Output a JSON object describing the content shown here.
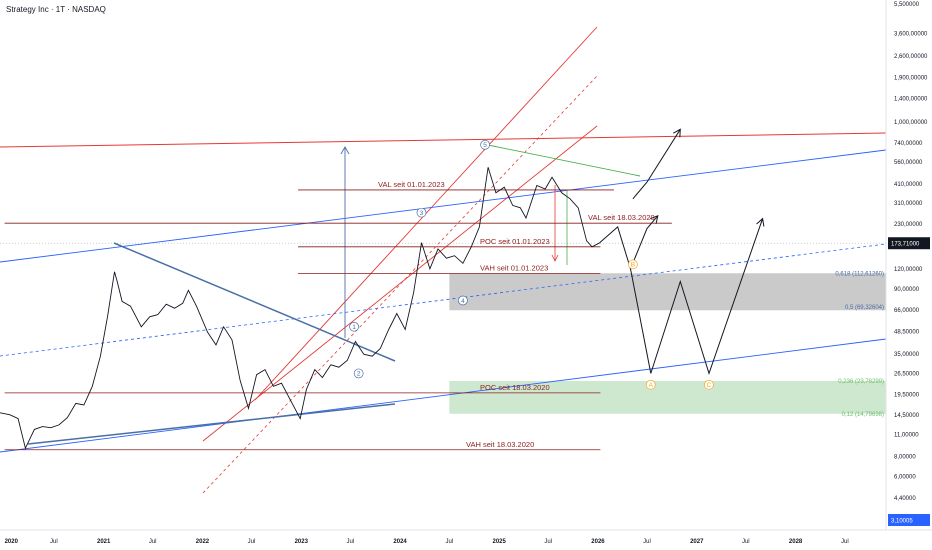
{
  "title": "Strategy Inc · 1T · NASDAQ",
  "colors": {
    "price": "#131722",
    "red": "#e53935",
    "darkred": "#8b1c1c",
    "blue": "#2962ff",
    "steel": "#4a6fa5",
    "green": "#4caf50",
    "gray_zone": "#9e9e9e",
    "green_zone": "#a5d6a7",
    "orange": "#f5a623",
    "bg": "#ffffff"
  },
  "chart_data": {
    "type": "line",
    "scale": "log",
    "ylim": [
      3.1,
      5500
    ],
    "xlim": [
      "2019-12-15",
      "2028-11-30"
    ],
    "y_ticks": [
      {
        "v": 5500,
        "label": "5,500000"
      },
      {
        "v": 3600,
        "label": "3,600,00000"
      },
      {
        "v": 2600,
        "label": "2,600,00000"
      },
      {
        "v": 1900,
        "label": "1,900,00000"
      },
      {
        "v": 1400,
        "label": "1,400,00000"
      },
      {
        "v": 1000,
        "label": "1,000,00000"
      },
      {
        "v": 740,
        "label": "740,00000"
      },
      {
        "v": 560,
        "label": "560,00000"
      },
      {
        "v": 410,
        "label": "410,00000"
      },
      {
        "v": 310,
        "label": "310,00000"
      },
      {
        "v": 230,
        "label": "230,00000"
      },
      {
        "v": 120,
        "label": "120,00000"
      },
      {
        "v": 90,
        "label": "90,00000"
      },
      {
        "v": 66,
        "label": "66,00000"
      },
      {
        "v": 48.5,
        "label": "48,50000"
      },
      {
        "v": 35,
        "label": "35,00000"
      },
      {
        "v": 26.5,
        "label": "26,50000"
      },
      {
        "v": 19.5,
        "label": "19,50000"
      },
      {
        "v": 14.5,
        "label": "14,50000"
      },
      {
        "v": 11,
        "label": "11,00000"
      },
      {
        "v": 8,
        "label": "8,00000"
      },
      {
        "v": 6,
        "label": "6,00000"
      },
      {
        "v": 4.4,
        "label": "4,40000"
      }
    ],
    "current_price": {
      "v": 173.71,
      "label": "173,71000"
    },
    "low_marker": {
      "v": 3.10005,
      "label": "3,10005"
    },
    "x_ticks": [
      {
        "t": "2020-01-01",
        "label": "2020"
      },
      {
        "t": "2020-07-01",
        "label": "Jul"
      },
      {
        "t": "2021-01-01",
        "label": "2021"
      },
      {
        "t": "2021-07-01",
        "label": "Jul"
      },
      {
        "t": "2022-01-01",
        "label": "2022"
      },
      {
        "t": "2022-07-01",
        "label": "Jul"
      },
      {
        "t": "2023-01-01",
        "label": "2023"
      },
      {
        "t": "2023-07-01",
        "label": "Jul"
      },
      {
        "t": "2024-01-01",
        "label": "2024"
      },
      {
        "t": "2024-07-01",
        "label": "Jul"
      },
      {
        "t": "2025-01-01",
        "label": "2025"
      },
      {
        "t": "2025-07-01",
        "label": "Jul"
      },
      {
        "t": "2026-01-01",
        "label": "2026"
      },
      {
        "t": "2026-07-01",
        "label": "Jul"
      },
      {
        "t": "2027-01-01",
        "label": "2027"
      },
      {
        "t": "2027-07-01",
        "label": "Jul"
      },
      {
        "t": "2028-01-01",
        "label": "2028"
      },
      {
        "t": "2028-07-01",
        "label": "Jul"
      }
    ],
    "series": [
      {
        "values": [
          [
            "2019-12-15",
            15.0
          ],
          [
            "2020-01-20",
            14.6
          ],
          [
            "2020-02-20",
            13.8
          ],
          [
            "2020-03-18",
            9.0
          ],
          [
            "2020-04-20",
            11.8
          ],
          [
            "2020-05-20",
            12.3
          ],
          [
            "2020-06-20",
            12.1
          ],
          [
            "2020-07-20",
            12.6
          ],
          [
            "2020-08-20",
            14.0
          ],
          [
            "2020-09-20",
            17.2
          ],
          [
            "2020-10-20",
            16.8
          ],
          [
            "2020-11-20",
            22.0
          ],
          [
            "2020-12-20",
            34.0
          ],
          [
            "2021-01-15",
            60.0
          ],
          [
            "2021-02-10",
            115.0
          ],
          [
            "2021-02-20",
            100.0
          ],
          [
            "2021-03-10",
            75.0
          ],
          [
            "2021-04-10",
            70.0
          ],
          [
            "2021-05-20",
            52.0
          ],
          [
            "2021-06-20",
            60.0
          ],
          [
            "2021-07-20",
            62.0
          ],
          [
            "2021-08-20",
            72.0
          ],
          [
            "2021-09-20",
            68.0
          ],
          [
            "2021-10-20",
            73.0
          ],
          [
            "2021-11-10",
            88.0
          ],
          [
            "2021-12-10",
            70.0
          ],
          [
            "2022-01-20",
            48.0
          ],
          [
            "2022-02-20",
            40.0
          ],
          [
            "2022-03-20",
            52.0
          ],
          [
            "2022-04-20",
            43.0
          ],
          [
            "2022-05-20",
            24.0
          ],
          [
            "2022-06-20",
            16.0
          ],
          [
            "2022-07-20",
            26.0
          ],
          [
            "2022-08-20",
            28.0
          ],
          [
            "2022-09-20",
            22.0
          ],
          [
            "2022-10-20",
            23.0
          ],
          [
            "2022-12-28",
            13.8
          ],
          [
            "2023-01-20",
            21.0
          ],
          [
            "2023-02-20",
            28.0
          ],
          [
            "2023-03-20",
            25.0
          ],
          [
            "2023-04-20",
            30.0
          ],
          [
            "2023-05-20",
            29.0
          ],
          [
            "2023-06-20",
            32.0
          ],
          [
            "2023-07-20",
            42.0
          ],
          [
            "2023-08-20",
            35.0
          ],
          [
            "2023-09-20",
            34.0
          ],
          [
            "2023-10-20",
            38.0
          ],
          [
            "2023-11-20",
            50.0
          ],
          [
            "2023-12-20",
            63.0
          ],
          [
            "2024-01-20",
            50.0
          ],
          [
            "2024-02-20",
            85.0
          ],
          [
            "2024-03-20",
            175.0
          ],
          [
            "2024-04-20",
            120.0
          ],
          [
            "2024-05-20",
            160.0
          ],
          [
            "2024-06-20",
            140.0
          ],
          [
            "2024-07-20",
            145.0
          ],
          [
            "2024-08-20",
            130.0
          ],
          [
            "2024-09-20",
            165.0
          ],
          [
            "2024-10-20",
            220.0
          ],
          [
            "2024-11-21",
            520.0
          ],
          [
            "2024-12-20",
            360.0
          ],
          [
            "2025-01-20",
            390.0
          ],
          [
            "2025-02-20",
            300.0
          ],
          [
            "2025-03-20",
            290.0
          ],
          [
            "2025-04-10",
            250.0
          ],
          [
            "2025-05-20",
            400.0
          ],
          [
            "2025-06-20",
            380.0
          ],
          [
            "2025-07-15",
            450.0
          ],
          [
            "2025-08-20",
            360.0
          ],
          [
            "2025-09-20",
            330.0
          ],
          [
            "2025-10-20",
            290.0
          ],
          [
            "2025-11-20",
            180.0
          ],
          [
            "2025-12-10",
            165.0
          ],
          [
            "2026-01-05",
            173.71
          ]
        ]
      }
    ],
    "scenario_path_1": [
      [
        "2026-01-05",
        173.71
      ],
      [
        "2026-03-15",
        220.0
      ],
      [
        "2026-05-01",
        120.0
      ],
      [
        "2026-07-01",
        215.0
      ],
      [
        "2026-08-10",
        258.0
      ]
    ],
    "scenario_path_2": [
      [
        "2026-05-01",
        120.0
      ],
      [
        "2026-07-15",
        26.5
      ],
      [
        "2026-11-01",
        100.0
      ],
      [
        "2027-02-15",
        26.5
      ],
      [
        "2027-09-01",
        248.0
      ]
    ],
    "scenario_path_up": [
      [
        "2026-05-10",
        330.0
      ],
      [
        "2026-07-01",
        420.0
      ],
      [
        "2026-11-01",
        900.0
      ]
    ],
    "horizontal_levels": [
      {
        "label": "VAL seit 01.01.2023",
        "v": 375,
        "x1": "2022-12-20",
        "x2": "2026-03-01",
        "color": "darkred"
      },
      {
        "label": "VAL seit 18.03.2020",
        "v": 232,
        "x1": "2020-01-01",
        "x2": "2026-10-01",
        "color": "darkred"
      },
      {
        "label": "POC seit 01.01.2023",
        "v": 165,
        "x1": "2022-12-20",
        "x2": "2026-01-10",
        "color": "darkred"
      },
      {
        "label": "VAH seit 01.01.2023",
        "v": 112,
        "x1": "2022-12-20",
        "x2": "2026-01-10",
        "color": "darkred"
      },
      {
        "label": "POC seit 18.03.2020",
        "v": 20.0,
        "x1": "2020-01-01",
        "x2": "2026-01-10",
        "color": "darkred"
      },
      {
        "label": "VAH seit 18.03.2020",
        "v": 8.8,
        "x1": "2020-01-01",
        "x2": "2026-01-10",
        "color": "darkred"
      }
    ],
    "fib_levels": [
      {
        "label": "0,618 (112,61260)",
        "v": 112.6,
        "color": "steel"
      },
      {
        "label": "0,5 (69,32604)",
        "v": 69.3,
        "color": "steel"
      },
      {
        "label": "0,236 (23,78299)",
        "v": 23.78,
        "color": "green"
      },
      {
        "label": "0,12 (14,79698)",
        "v": 14.8,
        "color": "green"
      }
    ],
    "zones": [
      {
        "name": "gray",
        "x1": "2024-07-01",
        "x2": "2028-11-30",
        "v1": 66.0,
        "v2": 112.6
      },
      {
        "name": "green",
        "x1": "2024-07-01",
        "x2": "2028-11-30",
        "v1": 14.8,
        "v2": 23.78
      }
    ],
    "wave_labels": [
      {
        "text": "1",
        "t": "2023-07-15",
        "v": 52.0,
        "color": "steel"
      },
      {
        "text": "2",
        "t": "2023-08-01",
        "v": 26.5,
        "color": "steel"
      },
      {
        "text": "3",
        "t": "2024-03-20",
        "v": 270.0,
        "color": "steel"
      },
      {
        "text": "4",
        "t": "2024-08-20",
        "v": 76.0,
        "color": "steel"
      },
      {
        "text": "5",
        "t": "2024-11-10",
        "v": 720.0,
        "color": "steel"
      },
      {
        "text": "B",
        "t": "2026-05-10",
        "v": 128.0,
        "color": "orange"
      },
      {
        "text": "A",
        "t": "2026-07-15",
        "v": 22.5,
        "color": "orange"
      },
      {
        "text": "C",
        "t": "2027-02-15",
        "v": 22.5,
        "color": "orange"
      }
    ]
  }
}
